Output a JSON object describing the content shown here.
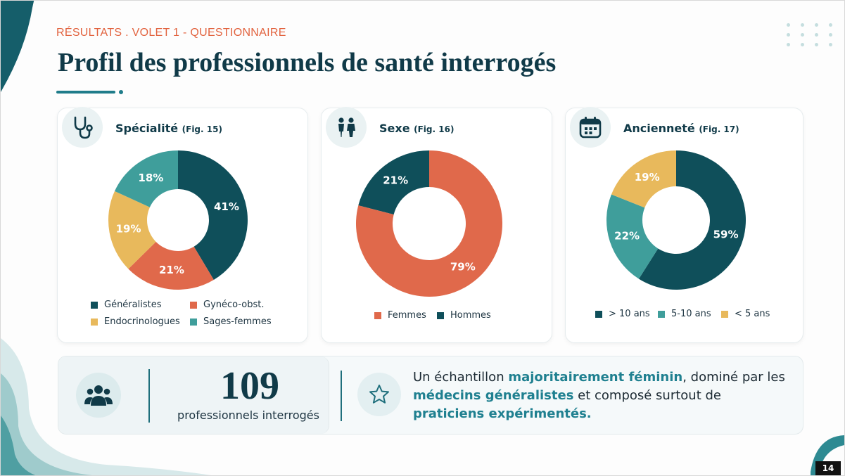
{
  "header": {
    "eyebrow": "RÉSULTATS . VOLET 1 - QUESTIONNAIRE",
    "title": "Profil des professionnels de santé interrogés"
  },
  "colors": {
    "dark_teal": "#0f4f5a",
    "coral": "#e0694b",
    "mustard": "#e8b95c",
    "teal": "#3f9e9b",
    "accent": "#1f8090"
  },
  "cards": [
    {
      "title": "Spécialité",
      "fig": "(Fig. 15)",
      "icon": "stethoscope-icon"
    },
    {
      "title": "Sexe",
      "fig": "(Fig. 16)",
      "icon": "people-pair-icon"
    },
    {
      "title": "Ancienneté",
      "fig": "(Fig. 17)",
      "icon": "calendar-icon"
    }
  ],
  "chart_data": [
    {
      "type": "pie",
      "title": "Spécialité (Fig. 15)",
      "donut": true,
      "categories": [
        "Généralistes",
        "Gynéco-obst.",
        "Endocrinologues",
        "Sages-femmes"
      ],
      "slice_order": [
        "Généralistes",
        "Gynéco-obst.",
        "Endocrinologues",
        "Sages-femmes"
      ],
      "values": [
        41,
        21,
        19,
        18
      ],
      "labels": [
        "41%",
        "21%",
        "19%",
        "18%"
      ],
      "colors": [
        "#0f4f5a",
        "#e0694b",
        "#e8b95c",
        "#3f9e9b"
      ],
      "legend_placement": "bottom"
    },
    {
      "type": "pie",
      "title": "Sexe (Fig. 16)",
      "donut": true,
      "categories": [
        "Femmes",
        "Hommes"
      ],
      "values": [
        79,
        21
      ],
      "labels": [
        "79%",
        "21%"
      ],
      "colors": [
        "#e0694b",
        "#0f4f5a"
      ],
      "legend_placement": "bottom"
    },
    {
      "type": "pie",
      "title": "Ancienneté (Fig. 17)",
      "donut": true,
      "categories": [
        "> 10 ans",
        "5-10 ans",
        "< 5 ans"
      ],
      "values": [
        59,
        22,
        19
      ],
      "labels": [
        "59%",
        "22%",
        "19%"
      ],
      "colors": [
        "#0f4f5a",
        "#3f9e9b",
        "#e8b95c"
      ],
      "legend_placement": "bottom"
    }
  ],
  "stats": {
    "count": "109",
    "count_label": "professionnels interrogés",
    "icon": "people-group-icon",
    "summary_icon": "star-icon"
  },
  "summary": {
    "p1": "Un échantillon ",
    "h1": "majoritairement féminin",
    "p2": ", dominé par les ",
    "h2": "médecins généralistes",
    "p3": " et composé surtout de ",
    "h3": "praticiens expérimentés",
    "p4": "."
  },
  "page_number": "14"
}
